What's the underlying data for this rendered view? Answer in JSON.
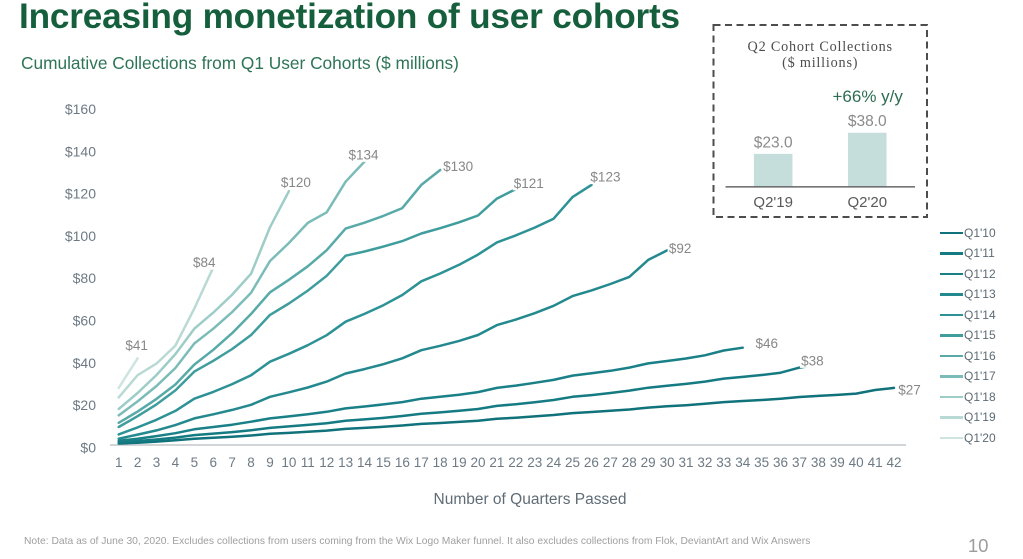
{
  "slide": {
    "title": "Increasing monetization of user cohorts",
    "subtitle": "Cumulative Collections from Q1 User Cohorts ($ millions)",
    "footnote": "Note: Data as of June 30, 2020. Excludes collections from users coming from the Wix Logo Maker funnel. It also excludes collections from Flok, DeviantArt and Wix Answers",
    "page_number": "10",
    "colors": {
      "title_green": "#155f3d",
      "subtitle_green": "#2e7457",
      "growth_green": "#2d6e53",
      "axis_tick": "#6d7a84",
      "data_label": "#878787",
      "legend_text": "#5d6b75",
      "footnote_gray": "#9f9f9f"
    }
  },
  "chart_data": [
    {
      "type": "line",
      "title": "Cumulative Collections from Q1 User Cohorts ($ millions)",
      "xlabel": "Number of Quarters Passed",
      "ylabel": "",
      "x_range": [
        1,
        42
      ],
      "x_tick_step": 1,
      "ylim": [
        0,
        160
      ],
      "y_tick_step": 20,
      "y_tick_prefix": "$",
      "grid": false,
      "legend_position": "right",
      "series": [
        {
          "name": "Q1'10",
          "color": "#10727a",
          "end_label": "$27",
          "label_dx": 15.5,
          "label_dy": 2,
          "values": [
            0.7,
            1.1,
            1.6,
            2.2,
            3.0,
            3.4,
            3.9,
            4.5,
            5.3,
            5.7,
            6.3,
            6.8,
            7.6,
            8.1,
            8.6,
            9.2,
            10.0,
            10.4,
            10.9,
            11.5,
            12.4,
            12.9,
            13.5,
            14.2,
            15.1,
            15.6,
            16.2,
            16.8,
            17.7,
            18.3,
            18.8,
            19.5,
            20.3,
            20.8,
            21.3,
            21.9,
            22.7,
            23.2,
            23.7,
            24.3,
            26.0,
            27
          ]
        },
        {
          "name": "Q1'11",
          "color": "#157b82",
          "end_label": "$38",
          "label_dx": -6,
          "label_dy": -4,
          "values": [
            1.2,
            1.9,
            2.6,
            3.5,
            4.7,
            5.4,
            6.1,
            7.0,
            8.1,
            8.8,
            9.5,
            10.3,
            11.5,
            12.1,
            12.8,
            13.7,
            14.8,
            15.4,
            16.2,
            17.0,
            18.5,
            19.3,
            20.2,
            21.3,
            22.8,
            23.6,
            24.6,
            25.7,
            27.1,
            28.0,
            28.9,
            30.0,
            31.4,
            32.2,
            33.1,
            34.2,
            36.6,
            38
          ]
        },
        {
          "name": "Q1'12",
          "color": "#1a8087",
          "end_label": "$46",
          "label_dx": 24,
          "label_dy": -4.5,
          "values": [
            2,
            3.0,
            4.2,
            5.6,
            7.4,
            8.5,
            9.6,
            11.0,
            12.6,
            13.5,
            14.5,
            15.7,
            17.3,
            18.2,
            19.2,
            20.3,
            21.9,
            22.8,
            23.8,
            25.0,
            27.0,
            28.1,
            29.4,
            30.8,
            32.8,
            33.9,
            35.1,
            36.6,
            38.6,
            39.7,
            40.9,
            42.4,
            44.7,
            46
          ]
        },
        {
          "name": "Q1'13",
          "color": "#23898e",
          "end_label": "$92",
          "label_dx": 13,
          "label_dy": -2,
          "values": [
            3,
            4.9,
            6.9,
            9.4,
            12.6,
            14.5,
            16.6,
            19.0,
            22.8,
            24.9,
            27.2,
            30.0,
            33.8,
            35.9,
            38.2,
            41.0,
            44.8,
            46.9,
            49.2,
            52.0,
            56.7,
            59.3,
            62.3,
            65.8,
            70.4,
            73.1,
            76.1,
            79.5,
            87.5,
            92
          ]
        },
        {
          "name": "Q1'14",
          "color": "#2d9295",
          "end_label": "$123",
          "label_dx": 14,
          "label_dy": -8,
          "values": [
            5,
            8.3,
            11.9,
            16.1,
            21.9,
            25.1,
            28.8,
            33.0,
            39.4,
            43.1,
            47.2,
            51.9,
            58.3,
            62.0,
            66.1,
            70.9,
            77.4,
            81.1,
            85.2,
            90.0,
            95.8,
            99.1,
            102.8,
            107.0,
            117.2,
            123
          ]
        },
        {
          "name": "Q1'15",
          "color": "#3f9d9d",
          "end_label": "$121",
          "label_dx": 13,
          "label_dy": -6,
          "values": [
            8.5,
            13.6,
            19.2,
            25.8,
            34.7,
            39.8,
            45.4,
            52.0,
            61.5,
            66.9,
            73.0,
            80.0,
            89.5,
            91.5,
            93.8,
            96.4,
            100.0,
            102.5,
            105.3,
            108.5,
            116.5,
            121
          ]
        },
        {
          "name": "Q1'16",
          "color": "#58aaa8",
          "end_label": "$130",
          "label_dx": 18,
          "label_dy": -4,
          "values": [
            10.5,
            15.8,
            21.8,
            28.6,
            38.0,
            45.0,
            52.9,
            62.0,
            72.2,
            78.1,
            84.5,
            92.1,
            102.3,
            105.1,
            108.3,
            112.0,
            123.0,
            130
          ]
        },
        {
          "name": "Q1'17",
          "color": "#7cbcb8",
          "end_label": "$134",
          "label_dx": -1,
          "label_dy": -7,
          "values": [
            14,
            20.6,
            27.9,
            36.4,
            48.0,
            55.0,
            62.9,
            72.0,
            87.0,
            95.5,
            105.0,
            110.0,
            124.5,
            134
          ]
        },
        {
          "name": "Q1'18",
          "color": "#9ecdc8",
          "end_label": "$120",
          "label_dx": 7,
          "label_dy": -9,
          "values": [
            17,
            24.6,
            33.1,
            43.0,
            55.0,
            62.6,
            71.1,
            81.0,
            103.0,
            120
          ]
        },
        {
          "name": "Q1'19",
          "color": "#b9dad4",
          "end_label": "$84",
          "label_dx": -9,
          "label_dy": -5,
          "values": [
            22.5,
            33.0,
            38.5,
            47.0,
            64.5,
            84
          ]
        },
        {
          "name": "Q1'20",
          "color": "#cfe4e0",
          "end_label": "$41",
          "label_dx": -1,
          "label_dy": -13,
          "values": [
            27,
            41
          ]
        }
      ]
    },
    {
      "type": "bar",
      "title": "Q2 Cohort Collections",
      "subtitle": "($ millions)",
      "annotation": "+66% y/y",
      "categories": [
        "Q2'19",
        "Q2'20"
      ],
      "values": [
        23.0,
        38.0
      ],
      "value_labels": [
        "$23.0",
        "$38.0"
      ],
      "bar_color": "#c6dedb",
      "ylim": [
        0,
        60
      ],
      "grid": false
    }
  ]
}
